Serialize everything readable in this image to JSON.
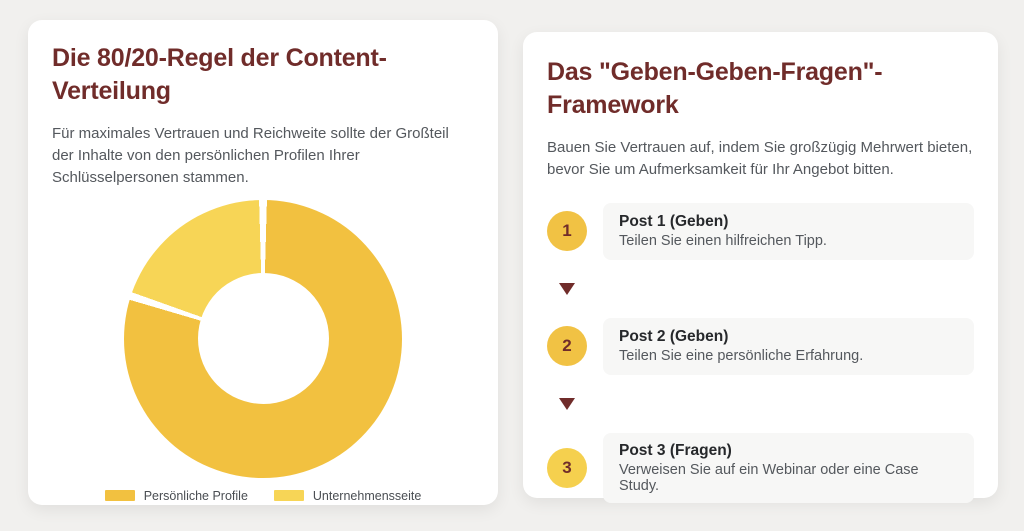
{
  "colors": {
    "page_background": "#F1F0EE",
    "card_background": "#FFFFFF",
    "heading_maroon": "#702C2A",
    "body_text_gray": "#54585D",
    "step_title_dark": "#26282B",
    "step_box_background": "#F7F7F6",
    "gold_dark": "#F2C140",
    "gold_light": "#F7D556"
  },
  "left_card": {
    "title": "Die 80/20-Regel der Content-Verteilung",
    "subtitle": "Für maximales Vertrauen und Reichweite sollte der Großteil der Inhalte von den persönlichen Profilen Ihrer Schlüsselpersonen stammen."
  },
  "chart_data": {
    "type": "pie",
    "style": "donut",
    "title": "Die 80/20-Regel der Content-Verteilung",
    "categories": [
      "Persönliche Profile",
      "Unternehmensseite"
    ],
    "values": [
      80,
      20
    ],
    "colors": [
      "#F2C140",
      "#F7D556"
    ],
    "start_angle_deg": 0,
    "direction": "clockwise",
    "cutout_percent": 47,
    "segment_border_color": "#FFFFFF",
    "legend_position": "bottom"
  },
  "right_card": {
    "title": "Das \"Geben-Geben-Fragen\"-Framework",
    "subtitle": "Bauen Sie Vertrauen auf, indem Sie großzügig Mehrwert bieten, bevor Sie um Aufmerksamkeit für Ihr Angebot bitten.",
    "arrow_color": "#702C2A",
    "steps": [
      {
        "number": "1",
        "title": "Post 1 (Geben)",
        "description": "Teilen Sie einen hilfreichen Tipp.",
        "circle_color": "#F1C244"
      },
      {
        "number": "2",
        "title": "Post 2 (Geben)",
        "description": "Teilen Sie eine persönliche Erfahrung.",
        "circle_color": "#F1C244"
      },
      {
        "number": "3",
        "title": "Post 3 (Fragen)",
        "description": "Verweisen Sie auf ein Webinar oder eine Case Study.",
        "circle_color": "#F5D04E"
      }
    ]
  }
}
